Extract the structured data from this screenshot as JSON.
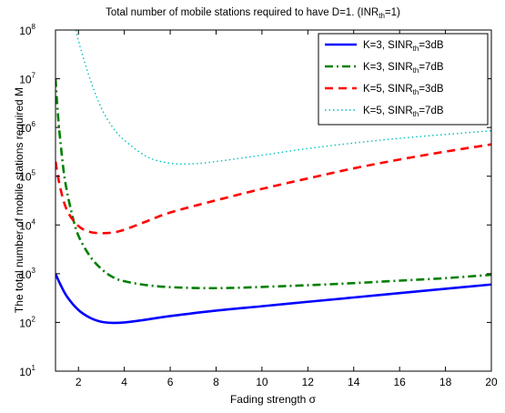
{
  "chart_data": {
    "type": "line",
    "title": {
      "main": "Total number of mobile stations required to have D=1. (INR",
      "sub": "th",
      "tail": "=1)"
    },
    "xlabel": "Fading strength σ",
    "ylabel": "The total number of mobile stations required M",
    "xlim": [
      1,
      20
    ],
    "ylim": [
      10,
      100000000
    ],
    "y_scale": "log",
    "x_ticks": [
      2,
      4,
      6,
      8,
      10,
      12,
      14,
      16,
      18,
      20
    ],
    "y_ticks": [
      {
        "base": "10",
        "exp": "1",
        "value": 10
      },
      {
        "base": "10",
        "exp": "2",
        "value": 100
      },
      {
        "base": "10",
        "exp": "3",
        "value": 1000
      },
      {
        "base": "10",
        "exp": "4",
        "value": 10000
      },
      {
        "base": "10",
        "exp": "5",
        "value": 100000
      },
      {
        "base": "10",
        "exp": "6",
        "value": 1000000
      },
      {
        "base": "10",
        "exp": "7",
        "value": 10000000
      },
      {
        "base": "10",
        "exp": "8",
        "value": 100000000
      }
    ],
    "grid": false,
    "legend_position": "top-right",
    "series": [
      {
        "name": "K=3, SINR_th=3dB",
        "label_pre": "K=3, SINR",
        "label_sub": "th",
        "label_post": "=3dB",
        "color": "#0000ff",
        "dash": "solid",
        "x": [
          1,
          1.2,
          1.5,
          2,
          2.5,
          3,
          3.5,
          4,
          5,
          6,
          8,
          10,
          12,
          14,
          16,
          18,
          20
        ],
        "y": [
          1000,
          620,
          340,
          180,
          125,
          103,
          98,
          100,
          115,
          135,
          175,
          215,
          265,
          325,
          400,
          490,
          600
        ]
      },
      {
        "name": "K=3, SINR_th=7dB",
        "label_pre": "K=3, SINR",
        "label_sub": "th",
        "label_post": "=7dB",
        "color": "#008000",
        "dash": "dashdot",
        "x": [
          1,
          1.1,
          1.2,
          1.4,
          1.7,
          2,
          2.5,
          3,
          3.5,
          4,
          5,
          6,
          7,
          8,
          9,
          10,
          12,
          14,
          16,
          18,
          20
        ],
        "y": [
          10000000,
          2000000,
          600000,
          90000,
          18000,
          6000,
          2300,
          1250,
          850,
          700,
          580,
          530,
          510,
          505,
          515,
          535,
          580,
          640,
          720,
          810,
          950
        ]
      },
      {
        "name": "K=5, SINR_th=3dB",
        "label_pre": "K=5, SINR",
        "label_sub": "th",
        "label_post": "=3dB",
        "color": "#ff0000",
        "dash": "dashed",
        "x": [
          1,
          1.2,
          1.5,
          2,
          2.5,
          3,
          3.5,
          4,
          5,
          6,
          8,
          10,
          12,
          14,
          16,
          18,
          20
        ],
        "y": [
          200000,
          60000,
          20000,
          9500,
          7200,
          6800,
          7000,
          8000,
          12000,
          18000,
          32000,
          55000,
          90000,
          145000,
          220000,
          320000,
          450000
        ]
      },
      {
        "name": "K=5, SINR_th=7dB",
        "label_pre": "K=5, SINR",
        "label_sub": "th",
        "label_post": "=7dB",
        "color": "#00bfbf",
        "dash": "dotted",
        "x": [
          1.9,
          2,
          2.5,
          3,
          3.5,
          4,
          5,
          6,
          7,
          8,
          10,
          12,
          14,
          16,
          18,
          20
        ],
        "y": [
          100000000,
          60000000,
          10000000,
          2500000,
          1000000,
          550000,
          250000,
          185000,
          180000,
          200000,
          270000,
          370000,
          480000,
          600000,
          720000,
          860000
        ]
      }
    ]
  }
}
